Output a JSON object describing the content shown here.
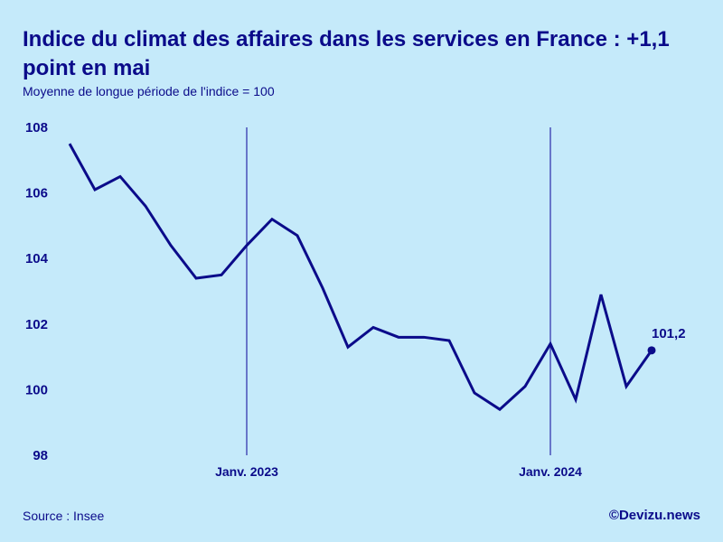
{
  "header": {
    "title": "Indice du climat des affaires dans les services en France : +1,1 point en mai",
    "subtitle": "Moyenne de longue période de l'indice = 100"
  },
  "footer": {
    "source": "Source : Insee",
    "credit": "©Devizu.news"
  },
  "colors": {
    "background": "#c5eafa",
    "line": "#0b0b8a"
  },
  "chart_data": {
    "type": "line",
    "title": "Indice du climat des affaires dans les services en France : +1,1 point en mai",
    "subtitle": "Moyenne de longue période de l'indice = 100",
    "xlabel": "",
    "ylabel": "",
    "ylim": [
      98,
      108
    ],
    "yticks": [
      "108",
      "106",
      "104",
      "102",
      "100",
      "98"
    ],
    "ytick_values": [
      108,
      106,
      104,
      102,
      100,
      98
    ],
    "x": [
      "2022-06",
      "2022-07",
      "2022-08",
      "2022-09",
      "2022-10",
      "2022-11",
      "2022-12",
      "2023-01",
      "2023-02",
      "2023-03",
      "2023-04",
      "2023-05",
      "2023-06",
      "2023-07",
      "2023-08",
      "2023-09",
      "2023-10",
      "2023-11",
      "2023-12",
      "2024-01",
      "2024-02",
      "2024-03",
      "2024-04",
      "2024-05"
    ],
    "xticks": [
      {
        "x": "2023-01",
        "label": "Janv. 2023"
      },
      {
        "x": "2024-01",
        "label": "Janv. 2024"
      }
    ],
    "series": [
      {
        "values": [
          107.5,
          106.1,
          106.5,
          105.6,
          104.4,
          103.4,
          103.5,
          104.4,
          105.2,
          104.7,
          103.1,
          101.3,
          101.9,
          101.6,
          101.6,
          101.5,
          99.9,
          99.4,
          100.1,
          101.4,
          99.7,
          102.9,
          100.1,
          101.2
        ]
      }
    ],
    "annotation": {
      "x": "2024-05",
      "label": "101,2"
    },
    "grid": false
  }
}
